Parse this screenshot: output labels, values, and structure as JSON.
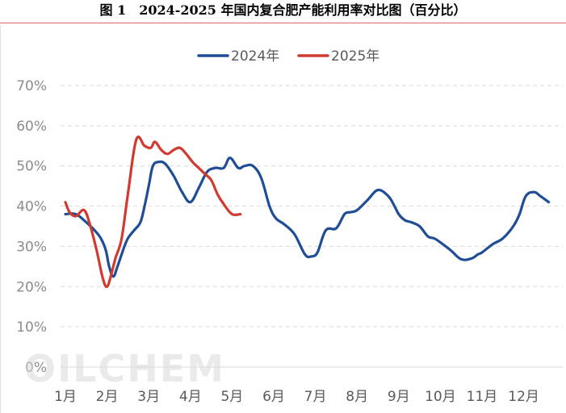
{
  "title": "图 1　2024-2025 年国内复合肥产能利用率对比图（百分比）",
  "watermark": "OILCHEM",
  "chart_data": {
    "type": "line",
    "title": "2024-2025 年国内复合肥产能利用率对比图（百分比）",
    "xlabel": "",
    "ylabel": "",
    "x_unit": "month index (1 = 1月 start)",
    "categories": [
      "1月",
      "2月",
      "3月",
      "4月",
      "5月",
      "6月",
      "7月",
      "8月",
      "9月",
      "10月",
      "11月",
      "12月"
    ],
    "y_ticks": [
      "0%",
      "10%",
      "20%",
      "30%",
      "40%",
      "50%",
      "60%",
      "70%"
    ],
    "ylim": [
      0,
      70
    ],
    "xlim": [
      1,
      12.6
    ],
    "grid": true,
    "legend_position": "top-center",
    "series": [
      {
        "name": "2024年",
        "color": "#1f4e96",
        "x": [
          1.0,
          1.25,
          1.5,
          1.7,
          1.85,
          1.97,
          2.05,
          2.15,
          2.25,
          2.4,
          2.5,
          2.65,
          2.8,
          2.9,
          3.0,
          3.1,
          3.25,
          3.4,
          3.6,
          3.8,
          4.0,
          4.2,
          4.4,
          4.6,
          4.8,
          4.95,
          5.15,
          5.3,
          5.5,
          5.7,
          5.9,
          6.05,
          6.25,
          6.5,
          6.75,
          6.9,
          7.05,
          7.25,
          7.5,
          7.7,
          7.85,
          8.0,
          8.25,
          8.5,
          8.75,
          8.9,
          9.0,
          9.15,
          9.3,
          9.5,
          9.7,
          9.85,
          10.0,
          10.25,
          10.5,
          10.75,
          10.9,
          11.0,
          11.25,
          11.5,
          11.75,
          11.9,
          12.05,
          12.25,
          12.4,
          12.6
        ],
        "values": [
          38,
          38,
          36,
          34,
          32,
          29,
          25,
          22.5,
          25,
          29.5,
          32,
          34,
          36,
          40,
          45,
          50,
          51,
          50.5,
          47.5,
          43.5,
          41,
          44.5,
          48.5,
          49.5,
          49.5,
          52,
          49.5,
          50,
          50,
          47,
          40,
          37,
          35.5,
          33,
          28,
          27.5,
          28.5,
          34,
          34.5,
          38,
          38.5,
          39,
          41.5,
          44,
          42.5,
          40,
          38,
          36.5,
          36,
          35,
          32.5,
          32,
          31,
          29,
          26.8,
          27,
          28,
          28.5,
          30.5,
          32,
          35,
          38,
          42.5,
          43.5,
          42.5,
          41
        ]
      },
      {
        "name": "2025年",
        "color": "#d13a30",
        "x": [
          1.0,
          1.1,
          1.25,
          1.45,
          1.6,
          1.75,
          1.9,
          2.0,
          2.1,
          2.2,
          2.35,
          2.5,
          2.7,
          2.9,
          3.05,
          3.15,
          3.3,
          3.45,
          3.6,
          3.75,
          3.9,
          4.05,
          4.2,
          4.35,
          4.5,
          4.65,
          4.8,
          5.0,
          5.2
        ],
        "values": [
          41,
          38.5,
          37.5,
          39,
          35,
          29,
          22,
          20,
          23,
          27,
          32,
          43,
          56.5,
          55,
          54.5,
          56,
          54,
          53,
          54,
          54.5,
          53,
          51,
          49.5,
          48,
          46.5,
          43,
          40.5,
          38,
          38
        ]
      }
    ]
  }
}
